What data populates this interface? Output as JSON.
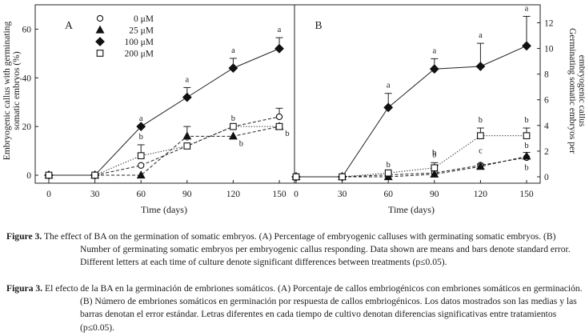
{
  "chart_data": [
    {
      "type": "line",
      "panel_letter": "A",
      "xlabel": "Time (days)",
      "ylabel_lines": [
        "Embryogenic callus with germinating",
        "somatic embryos (%)"
      ],
      "x": [
        0,
        30,
        60,
        90,
        120,
        150
      ],
      "x_ticks": [
        "0",
        "30",
        "60",
        "90",
        "120",
        "150"
      ],
      "y_ticks": [
        "0",
        "20",
        "40",
        "60"
      ],
      "ylim": [
        0,
        70
      ],
      "axis_side": "left",
      "grid": false,
      "legend_position": "top-left",
      "series": [
        {
          "name": "0 μM",
          "marker": "open-circle",
          "line": "dashed",
          "values": [
            0,
            0,
            4,
            12,
            20,
            24
          ],
          "error": [
            0,
            0,
            0,
            0,
            0,
            3.5
          ],
          "letters": [
            null,
            null,
            null,
            null,
            null,
            null
          ]
        },
        {
          "name": "25 μM",
          "marker": "filled-triangle",
          "line": "dashed",
          "values": [
            0,
            0,
            0,
            16,
            16,
            20
          ],
          "error": [
            0,
            0,
            0,
            4,
            0,
            0
          ],
          "letters": [
            null,
            null,
            null,
            null,
            "b",
            "b"
          ]
        },
        {
          "name": "100 μM",
          "marker": "filled-diamond",
          "line": "solid",
          "values": [
            0,
            0,
            20,
            32,
            44,
            52
          ],
          "error": [
            0,
            0,
            0,
            4,
            4,
            4.5
          ],
          "letters": [
            null,
            null,
            "a",
            "a",
            "a",
            "a"
          ]
        },
        {
          "name": "200 μM",
          "marker": "open-square",
          "line": "dotted",
          "values": [
            0,
            0,
            8,
            12,
            20,
            20
          ],
          "error": [
            0,
            0,
            4.5,
            0,
            0,
            0
          ],
          "letters": [
            null,
            null,
            "b",
            "b",
            "b",
            null
          ]
        }
      ]
    },
    {
      "type": "line",
      "panel_letter": "B",
      "xlabel": "Time (days)",
      "ylabel_lines": [
        "Germinating somatic embryos per",
        "embryogenic callus"
      ],
      "x": [
        0,
        30,
        60,
        90,
        120,
        150
      ],
      "x_ticks": [
        "0",
        "30",
        "60",
        "90",
        "120",
        "150"
      ],
      "y_ticks": [
        "0",
        "2",
        "4",
        "6",
        "8",
        "10",
        "12"
      ],
      "ylim": [
        0,
        13.4
      ],
      "axis_side": "right",
      "grid": false,
      "series": [
        {
          "name": "0 μM",
          "marker": "open-circle",
          "line": "dashed",
          "values": [
            0,
            0,
            0.15,
            0.3,
            0.9,
            1.5
          ],
          "error": [
            0,
            0,
            0,
            0,
            0,
            0
          ],
          "letters": [
            null,
            null,
            null,
            null,
            null,
            null
          ]
        },
        {
          "name": "25 μM",
          "marker": "filled-triangle",
          "line": "dashed",
          "values": [
            0,
            0,
            0,
            0.2,
            0.8,
            1.6
          ],
          "error": [
            0,
            0,
            0,
            0,
            0.2,
            0.3
          ],
          "letters": [
            null,
            null,
            null,
            null,
            null,
            "b"
          ]
        },
        {
          "name": "100 μM",
          "marker": "filled-diamond",
          "line": "solid",
          "values": [
            0,
            0,
            5.4,
            8.4,
            8.6,
            10.2
          ],
          "error": [
            0,
            0,
            1.1,
            0.8,
            1.8,
            2.3
          ],
          "letters": [
            null,
            null,
            "a",
            "a",
            "a",
            "a"
          ]
        },
        {
          "name": "200 μM",
          "marker": "open-square",
          "line": "dotted",
          "values": [
            0,
            0,
            0.3,
            0.7,
            3.2,
            3.2
          ],
          "error": [
            0,
            0,
            0,
            0.4,
            0.6,
            0.6
          ],
          "letters": [
            null,
            null,
            "b",
            "b",
            "b",
            "b"
          ]
        }
      ],
      "extra_letters": [
        {
          "x": 90,
          "y": 0.7,
          "text": "b",
          "dy_points": 16
        },
        {
          "x": 120,
          "y": 1.2,
          "text": "c",
          "dy_points": 10
        },
        {
          "x": 150,
          "y": 1.5,
          "text": "b",
          "dy_points": 12
        }
      ]
    }
  ],
  "caption_en": {
    "label": "Figure 3.",
    "text": "The effect of BA on the germination of somatic embryos. (A) Percentage of embryogenic calluses with germinating somatic embryos. (B) Number of germinating somatic embryos per embryogenic callus responding. Data shown are means and bars denote standard error. Different letters at each time of culture denote significant differences between treatments (p≤0.05)."
  },
  "caption_es": {
    "label": "Figura 3.",
    "text": "El efecto de la BA en la germinación de embriones somáticos. (A) Porcentaje de callos embriogénicos con embriones somáticos en germinación. (B) Número de embriones somáticos en germinación por respuesta de callos embriogénicos. Los datos mostrados son las medias y las barras denotan el error estándar. Letras diferentes en cada tiempo de cultivo denotan diferencias significativas entre tratamientos (p≤0.05)."
  }
}
